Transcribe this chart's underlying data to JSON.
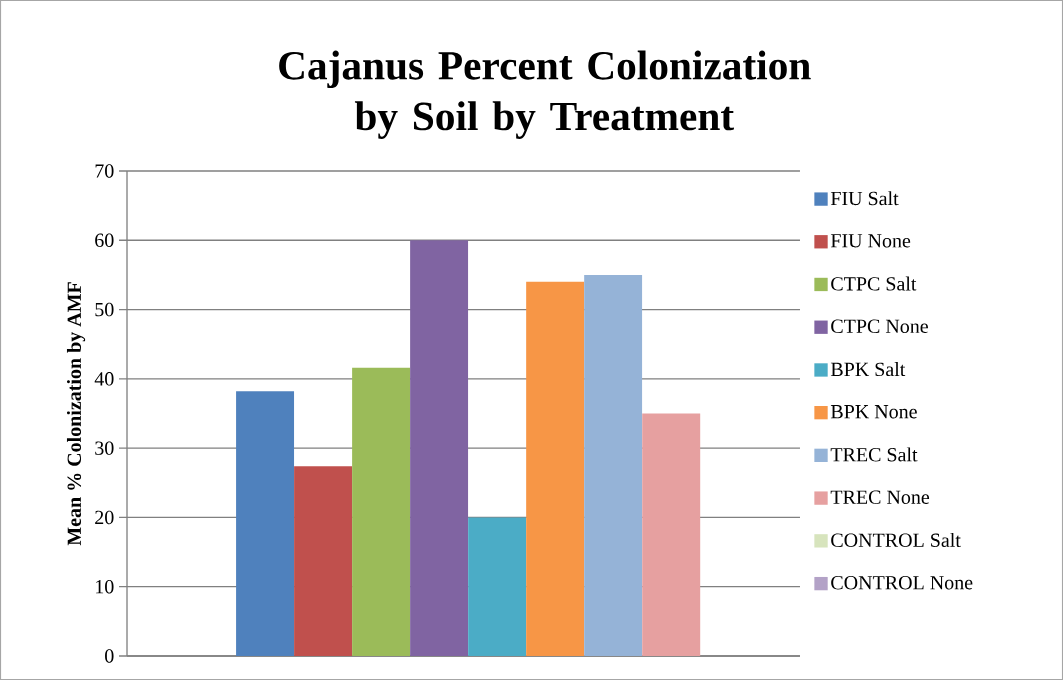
{
  "chart_data": {
    "type": "bar",
    "title": "Cajanus Percent Colonization by Soil by Treatment",
    "ylabel": "Mean % Colonization by AMF",
    "categories": [
      null
    ],
    "series": [
      {
        "name": "FIU Salt",
        "color": "#4f81bd",
        "values": [
          38.2
        ]
      },
      {
        "name": "FIU None",
        "color": "#c0504d",
        "values": [
          27.4
        ]
      },
      {
        "name": "CTPC Salt",
        "color": "#9bbb59",
        "values": [
          41.6
        ]
      },
      {
        "name": "CTPC None",
        "color": "#8064a2",
        "values": [
          60
        ]
      },
      {
        "name": "BPK Salt",
        "color": "#4bacc6",
        "values": [
          20
        ]
      },
      {
        "name": "BPK None",
        "color": "#f79646",
        "values": [
          54
        ]
      },
      {
        "name": "TREC Salt",
        "color": "#95b3d7",
        "values": [
          55
        ]
      },
      {
        "name": "TREC None",
        "color": "#e6a0a0",
        "values": [
          35
        ]
      },
      {
        "name": "CONTROL Salt",
        "color": "#d7e4bd",
        "values": [
          null
        ]
      },
      {
        "name": "CONTROL None",
        "color": "#b3a2c7",
        "values": [
          null
        ]
      }
    ],
    "ylim": [
      0,
      70
    ],
    "yticks": [
      0,
      10,
      20,
      30,
      40,
      50,
      60,
      70
    ],
    "grid": "y",
    "legend": "right"
  }
}
